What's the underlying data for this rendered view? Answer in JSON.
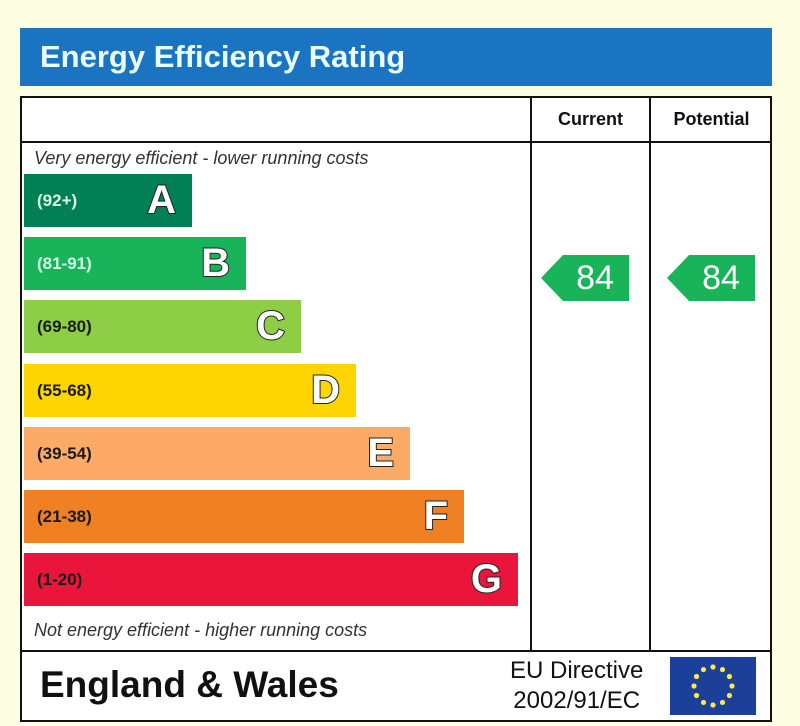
{
  "title": "Energy Efficiency Rating",
  "columns": {
    "current": "Current",
    "potential": "Potential"
  },
  "top_note": "Very energy efficient - lower running costs",
  "bottom_note": "Not energy efficient - higher running costs",
  "footer": {
    "region": "England & Wales",
    "directive_line1": "EU Directive",
    "directive_line2": "2002/91/EC",
    "flag": "eu-flag-icon"
  },
  "chart_data": {
    "type": "bar",
    "title": "Energy Efficiency Rating",
    "bands": [
      {
        "letter": "A",
        "range": "(92+)",
        "color": "#008054",
        "range_color": "#d8ffe8"
      },
      {
        "letter": "B",
        "range": "(81-91)",
        "color": "#19b459",
        "range_color": "#d8ffe8"
      },
      {
        "letter": "C",
        "range": "(69-80)",
        "color": "#8dce46",
        "range_color": "#1a1a1a"
      },
      {
        "letter": "D",
        "range": "(55-68)",
        "color": "#ffd500",
        "range_color": "#1a1a1a"
      },
      {
        "letter": "E",
        "range": "(39-54)",
        "color": "#fcaa65",
        "range_color": "#1a1a1a"
      },
      {
        "letter": "F",
        "range": "(21-38)",
        "color": "#ef8023",
        "range_color": "#1a1a1a"
      },
      {
        "letter": "G",
        "range": "(1-20)",
        "color": "#e9153b",
        "range_color": "#1a1a1a"
      }
    ],
    "current": {
      "value": "84",
      "band": "B",
      "color": "#19b459"
    },
    "potential": {
      "value": "84",
      "band": "B",
      "color": "#19b459"
    }
  }
}
